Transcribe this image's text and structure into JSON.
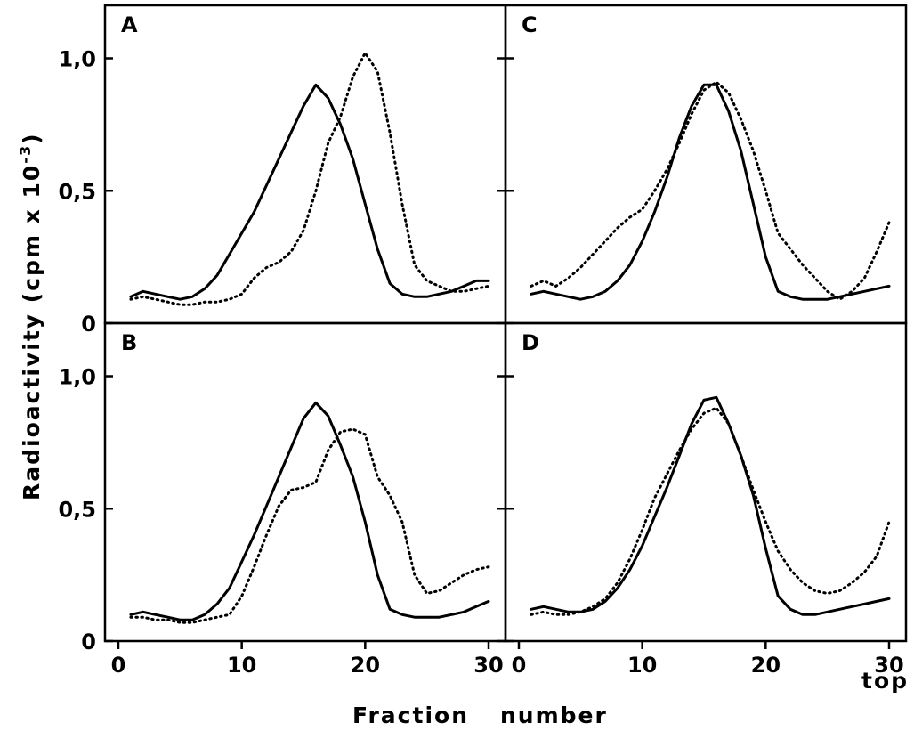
{
  "figure": {
    "ylabel_text": "Radioactivity (cpm x 10",
    "ylabel_exp": "-3",
    "ylabel_close": ")",
    "xlabel_word1": "Fraction",
    "xlabel_word2": "number",
    "x_end_label": "top"
  },
  "chart_data": [
    {
      "type": "line",
      "panel": "A",
      "xlim": [
        0,
        30
      ],
      "ylim": [
        0,
        1.2
      ],
      "series": [
        {
          "style": "solid",
          "x": [
            1,
            2,
            3,
            4,
            5,
            6,
            7,
            8,
            9,
            10,
            11,
            12,
            13,
            14,
            15,
            16,
            17,
            18,
            19,
            20,
            21,
            22,
            23,
            24,
            25,
            26,
            27,
            28,
            29,
            30
          ],
          "y": [
            0.1,
            0.12,
            0.11,
            0.1,
            0.09,
            0.1,
            0.13,
            0.18,
            0.26,
            0.34,
            0.42,
            0.52,
            0.62,
            0.72,
            0.82,
            0.9,
            0.85,
            0.75,
            0.62,
            0.45,
            0.28,
            0.15,
            0.11,
            0.1,
            0.1,
            0.11,
            0.12,
            0.14,
            0.16,
            0.16
          ]
        },
        {
          "style": "dotted",
          "x": [
            1,
            2,
            3,
            4,
            5,
            6,
            7,
            8,
            9,
            10,
            11,
            12,
            13,
            14,
            15,
            16,
            17,
            18,
            19,
            20,
            21,
            22,
            23,
            24,
            25,
            26,
            27,
            28,
            29,
            30
          ],
          "y": [
            0.09,
            0.1,
            0.09,
            0.08,
            0.07,
            0.07,
            0.08,
            0.08,
            0.09,
            0.11,
            0.17,
            0.21,
            0.23,
            0.27,
            0.35,
            0.5,
            0.68,
            0.78,
            0.93,
            1.02,
            0.95,
            0.72,
            0.45,
            0.22,
            0.16,
            0.14,
            0.12,
            0.12,
            0.13,
            0.14
          ]
        }
      ]
    },
    {
      "type": "line",
      "panel": "B",
      "xlim": [
        0,
        30
      ],
      "ylim": [
        0,
        1.2
      ],
      "series": [
        {
          "style": "solid",
          "x": [
            1,
            2,
            3,
            4,
            5,
            6,
            7,
            8,
            9,
            10,
            11,
            12,
            13,
            14,
            15,
            16,
            17,
            18,
            19,
            20,
            21,
            22,
            23,
            24,
            25,
            26,
            27,
            28,
            29,
            30
          ],
          "y": [
            0.1,
            0.11,
            0.1,
            0.09,
            0.08,
            0.08,
            0.1,
            0.14,
            0.2,
            0.3,
            0.4,
            0.51,
            0.62,
            0.73,
            0.84,
            0.9,
            0.85,
            0.74,
            0.62,
            0.45,
            0.25,
            0.12,
            0.1,
            0.09,
            0.09,
            0.09,
            0.1,
            0.11,
            0.13,
            0.15
          ]
        },
        {
          "style": "dotted",
          "x": [
            1,
            2,
            3,
            4,
            5,
            6,
            7,
            8,
            9,
            10,
            11,
            12,
            13,
            14,
            15,
            16,
            17,
            18,
            19,
            20,
            21,
            22,
            23,
            24,
            25,
            26,
            27,
            28,
            29,
            30
          ],
          "y": [
            0.09,
            0.09,
            0.08,
            0.08,
            0.07,
            0.07,
            0.08,
            0.09,
            0.1,
            0.17,
            0.28,
            0.4,
            0.51,
            0.57,
            0.58,
            0.6,
            0.72,
            0.79,
            0.8,
            0.78,
            0.62,
            0.55,
            0.45,
            0.25,
            0.18,
            0.19,
            0.22,
            0.25,
            0.27,
            0.28
          ]
        }
      ]
    },
    {
      "type": "line",
      "panel": "C",
      "xlim": [
        0,
        30
      ],
      "ylim": [
        0,
        1.2
      ],
      "series": [
        {
          "style": "solid",
          "x": [
            1,
            2,
            3,
            4,
            5,
            6,
            7,
            8,
            9,
            10,
            11,
            12,
            13,
            14,
            15,
            16,
            17,
            18,
            19,
            20,
            21,
            22,
            23,
            24,
            25,
            26,
            27,
            28,
            29,
            30
          ],
          "y": [
            0.11,
            0.12,
            0.11,
            0.1,
            0.09,
            0.1,
            0.12,
            0.16,
            0.22,
            0.31,
            0.42,
            0.55,
            0.7,
            0.82,
            0.9,
            0.9,
            0.8,
            0.65,
            0.45,
            0.25,
            0.12,
            0.1,
            0.09,
            0.09,
            0.09,
            0.1,
            0.11,
            0.12,
            0.13,
            0.14
          ]
        },
        {
          "style": "dotted",
          "x": [
            1,
            2,
            3,
            4,
            5,
            6,
            7,
            8,
            9,
            10,
            11,
            12,
            13,
            14,
            15,
            16,
            17,
            18,
            19,
            20,
            21,
            22,
            23,
            24,
            25,
            26,
            27,
            28,
            29,
            30
          ],
          "y": [
            0.14,
            0.16,
            0.14,
            0.17,
            0.21,
            0.26,
            0.31,
            0.36,
            0.4,
            0.43,
            0.5,
            0.58,
            0.68,
            0.79,
            0.88,
            0.91,
            0.87,
            0.77,
            0.65,
            0.5,
            0.34,
            0.28,
            0.22,
            0.17,
            0.12,
            0.09,
            0.12,
            0.17,
            0.27,
            0.38
          ]
        }
      ]
    },
    {
      "type": "line",
      "panel": "D",
      "xlim": [
        0,
        30
      ],
      "ylim": [
        0,
        1.2
      ],
      "series": [
        {
          "style": "solid",
          "x": [
            1,
            2,
            3,
            4,
            5,
            6,
            7,
            8,
            9,
            10,
            11,
            12,
            13,
            14,
            15,
            16,
            17,
            18,
            19,
            20,
            21,
            22,
            23,
            24,
            25,
            26,
            27,
            28,
            29,
            30
          ],
          "y": [
            0.12,
            0.13,
            0.12,
            0.11,
            0.11,
            0.12,
            0.15,
            0.2,
            0.27,
            0.36,
            0.47,
            0.58,
            0.7,
            0.82,
            0.91,
            0.92,
            0.82,
            0.7,
            0.55,
            0.35,
            0.17,
            0.12,
            0.1,
            0.1,
            0.11,
            0.12,
            0.13,
            0.14,
            0.15,
            0.16
          ]
        },
        {
          "style": "dotted",
          "x": [
            1,
            2,
            3,
            4,
            5,
            6,
            7,
            8,
            9,
            10,
            11,
            12,
            13,
            14,
            15,
            16,
            17,
            18,
            19,
            20,
            21,
            22,
            23,
            24,
            25,
            26,
            27,
            28,
            29,
            30
          ],
          "y": [
            0.1,
            0.11,
            0.1,
            0.1,
            0.11,
            0.13,
            0.16,
            0.22,
            0.31,
            0.42,
            0.54,
            0.63,
            0.72,
            0.8,
            0.86,
            0.88,
            0.82,
            0.7,
            0.57,
            0.45,
            0.34,
            0.27,
            0.22,
            0.19,
            0.18,
            0.19,
            0.22,
            0.26,
            0.32,
            0.45
          ]
        }
      ]
    }
  ]
}
